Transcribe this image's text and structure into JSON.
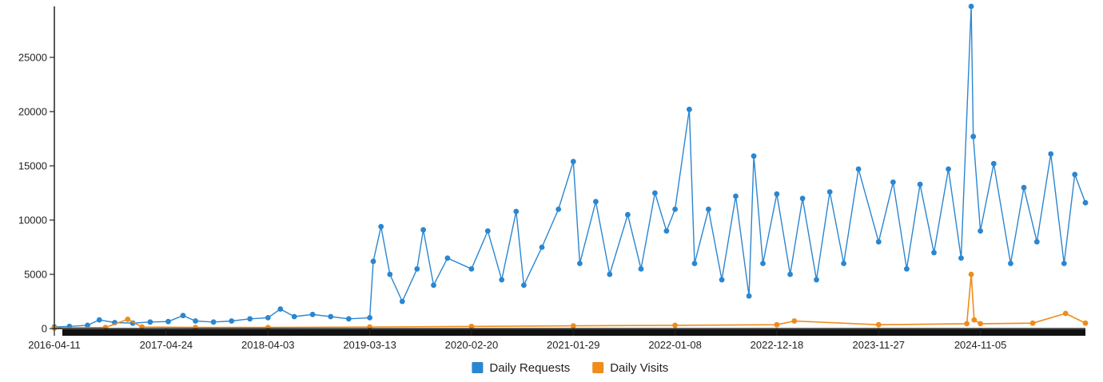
{
  "chart_data": {
    "type": "line",
    "title": "",
    "xlabel": "",
    "ylabel": "",
    "x_ticks": [
      "2016-04-11",
      "2017-04-24",
      "2018-04-03",
      "2019-03-13",
      "2020-02-20",
      "2021-01-29",
      "2022-01-08",
      "2022-12-18",
      "2023-11-27",
      "2024-11-05"
    ],
    "y_ticks": [
      "0",
      "5000",
      "10000",
      "15000",
      "20000",
      "25000"
    ],
    "xlim": [
      "2016-04-11",
      "2025-10-26"
    ],
    "ylim": [
      0,
      29700
    ],
    "grid": false,
    "legend_position": "bottom-center",
    "x_axis_band_color": "#111111",
    "series": [
      {
        "name": "Daily Requests",
        "color": "#2b86d0",
        "markers": true,
        "points": [
          [
            "2016-04-11",
            150
          ],
          [
            "2016-06-01",
            200
          ],
          [
            "2016-08-01",
            300
          ],
          [
            "2016-09-10",
            800
          ],
          [
            "2016-11-01",
            550
          ],
          [
            "2017-01-01",
            500
          ],
          [
            "2017-03-01",
            600
          ],
          [
            "2017-05-01",
            650
          ],
          [
            "2017-06-20",
            1200
          ],
          [
            "2017-08-01",
            700
          ],
          [
            "2017-10-01",
            600
          ],
          [
            "2017-12-01",
            700
          ],
          [
            "2018-02-01",
            900
          ],
          [
            "2018-04-03",
            1000
          ],
          [
            "2018-05-15",
            1800
          ],
          [
            "2018-07-01",
            1100
          ],
          [
            "2018-09-01",
            1300
          ],
          [
            "2018-11-01",
            1100
          ],
          [
            "2019-01-01",
            900
          ],
          [
            "2019-03-13",
            1000
          ],
          [
            "2019-03-25",
            6200
          ],
          [
            "2019-04-20",
            9400
          ],
          [
            "2019-05-20",
            5000
          ],
          [
            "2019-07-01",
            2500
          ],
          [
            "2019-08-20",
            5500
          ],
          [
            "2019-09-10",
            9100
          ],
          [
            "2019-10-15",
            4000
          ],
          [
            "2019-12-01",
            6500
          ],
          [
            "2020-02-20",
            5500
          ],
          [
            "2020-04-15",
            9000
          ],
          [
            "2020-06-01",
            4500
          ],
          [
            "2020-07-20",
            10800
          ],
          [
            "2020-08-15",
            4000
          ],
          [
            "2020-10-15",
            7500
          ],
          [
            "2020-12-10",
            11000
          ],
          [
            "2021-01-29",
            15400
          ],
          [
            "2021-02-20",
            6000
          ],
          [
            "2021-04-15",
            11700
          ],
          [
            "2021-06-01",
            5000
          ],
          [
            "2021-08-01",
            10500
          ],
          [
            "2021-09-15",
            5500
          ],
          [
            "2021-11-01",
            12500
          ],
          [
            "2021-12-10",
            9000
          ],
          [
            "2022-01-08",
            11000
          ],
          [
            "2022-02-25",
            20200
          ],
          [
            "2022-03-15",
            6000
          ],
          [
            "2022-05-01",
            11000
          ],
          [
            "2022-06-15",
            4500
          ],
          [
            "2022-08-01",
            12200
          ],
          [
            "2022-09-15",
            3000
          ],
          [
            "2022-10-01",
            15900
          ],
          [
            "2022-11-01",
            6000
          ],
          [
            "2022-12-18",
            12400
          ],
          [
            "2023-02-01",
            5000
          ],
          [
            "2023-03-15",
            12000
          ],
          [
            "2023-05-01",
            4500
          ],
          [
            "2023-06-15",
            12600
          ],
          [
            "2023-08-01",
            6000
          ],
          [
            "2023-09-20",
            14700
          ],
          [
            "2023-11-27",
            8000
          ],
          [
            "2024-01-15",
            13500
          ],
          [
            "2024-03-01",
            5500
          ],
          [
            "2024-04-15",
            13300
          ],
          [
            "2024-06-01",
            7000
          ],
          [
            "2024-07-20",
            14700
          ],
          [
            "2024-09-01",
            6500
          ],
          [
            "2024-10-05",
            29700
          ],
          [
            "2024-10-12",
            17700
          ],
          [
            "2024-11-05",
            9000
          ],
          [
            "2024-12-20",
            15200
          ],
          [
            "2025-02-15",
            6000
          ],
          [
            "2025-04-01",
            13000
          ],
          [
            "2025-05-15",
            8000
          ],
          [
            "2025-07-01",
            16100
          ],
          [
            "2025-08-15",
            6000
          ],
          [
            "2025-09-20",
            14200
          ],
          [
            "2025-10-26",
            11600
          ]
        ]
      },
      {
        "name": "Daily Visits",
        "color": "#ef8c1a",
        "markers": true,
        "points": [
          [
            "2016-04-11",
            50
          ],
          [
            "2016-10-01",
            100
          ],
          [
            "2016-12-15",
            850
          ],
          [
            "2017-02-01",
            150
          ],
          [
            "2017-08-01",
            100
          ],
          [
            "2018-04-03",
            100
          ],
          [
            "2019-03-13",
            150
          ],
          [
            "2020-02-20",
            200
          ],
          [
            "2021-01-29",
            250
          ],
          [
            "2022-01-08",
            300
          ],
          [
            "2022-12-18",
            350
          ],
          [
            "2023-02-15",
            700
          ],
          [
            "2023-11-27",
            350
          ],
          [
            "2024-09-20",
            450
          ],
          [
            "2024-10-05",
            5000
          ],
          [
            "2024-10-15",
            800
          ],
          [
            "2024-11-05",
            450
          ],
          [
            "2025-05-01",
            500
          ],
          [
            "2025-08-20",
            1400
          ],
          [
            "2025-10-26",
            500
          ]
        ]
      }
    ]
  }
}
